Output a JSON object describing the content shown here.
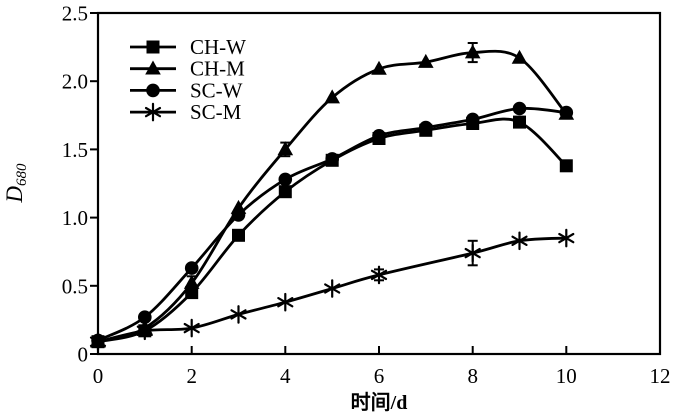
{
  "figure": {
    "background": "#ffffff",
    "ink": "#000000"
  },
  "chart_data": {
    "type": "line",
    "title": "",
    "xlabel": "时间/d",
    "ylabel": "D",
    "ylabel_sub": "680",
    "xlim": [
      0,
      12
    ],
    "ylim": [
      0,
      2.5
    ],
    "xticks": [
      0,
      2,
      4,
      6,
      8,
      10,
      12
    ],
    "yticks": [
      0,
      0.5,
      1.0,
      1.5,
      2.0,
      2.5
    ],
    "ytick_labels": [
      "0",
      "0.5",
      "1.0",
      "1.5",
      "2.0",
      "2.5"
    ],
    "grid": false,
    "legend_position": "upper-left-inside",
    "x": [
      0,
      1,
      2,
      3,
      4,
      5,
      6,
      7,
      8,
      9,
      10
    ],
    "series": [
      {
        "name": "CH-W",
        "marker": "square",
        "color": "#000000",
        "values": [
          0.09,
          0.17,
          0.45,
          0.87,
          1.19,
          1.42,
          1.58,
          1.64,
          1.69,
          1.7,
          1.38
        ],
        "errors": {}
      },
      {
        "name": "CH-M",
        "marker": "triangle",
        "color": "#000000",
        "values": [
          0.09,
          0.19,
          0.52,
          1.07,
          1.5,
          1.88,
          2.09,
          2.14,
          2.21,
          2.17,
          1.76
        ],
        "errors": {
          "2": 0.05,
          "4": 0.05,
          "8": 0.07
        }
      },
      {
        "name": "SC-W",
        "marker": "circle",
        "color": "#000000",
        "values": [
          0.1,
          0.27,
          0.63,
          1.02,
          1.28,
          1.43,
          1.6,
          1.66,
          1.72,
          1.8,
          1.77
        ],
        "errors": {}
      },
      {
        "name": "SC-M",
        "marker": "asterisk",
        "color": "#000000",
        "values": [
          0.09,
          0.17,
          0.19,
          0.29,
          0.38,
          0.48,
          0.58,
          null,
          0.74,
          0.83,
          0.85
        ],
        "errors": {
          "6": 0.04,
          "8": 0.09
        }
      }
    ]
  }
}
